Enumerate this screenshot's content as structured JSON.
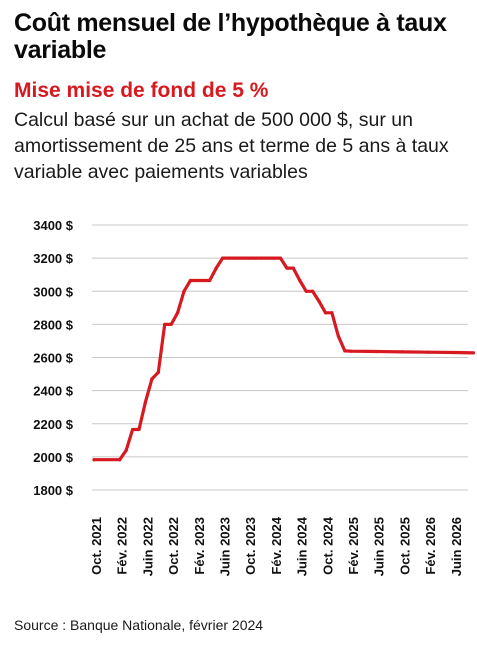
{
  "header": {
    "title": "Coût mensuel de l’hypothèque à taux variable",
    "subtitle": "Mise mise de fond de 5 %",
    "description": "Calcul basé sur un achat de 500 000 $, sur un amortissement de 25 ans et terme de 5 ans à taux variable avec paiements variables"
  },
  "footer": {
    "source": "Source : Banque Nationale, février 2024"
  },
  "colors": {
    "line": "#d71920",
    "grid": "#c8c8c8",
    "subtitle": "#d71920"
  },
  "chart_data": {
    "type": "line",
    "title": "Coût mensuel de l’hypothèque à taux variable",
    "subtitle": "Mise mise de fond de 5 %",
    "ylim": [
      1800,
      3400
    ],
    "yticks": [
      3400,
      3200,
      3000,
      2800,
      2600,
      2400,
      2200,
      2000,
      1800
    ],
    "ytick_labels": [
      "3400 $",
      "3200 $",
      "3000 $",
      "2800 $",
      "2600 $",
      "2400 $",
      "2200 $",
      "2000 $",
      "1800 $"
    ],
    "xticks": [
      "Oct. 2021",
      "Fév. 2022",
      "Juin 2022",
      "Oct. 2022",
      "Fév. 2023",
      "Juin 2023",
      "Oct. 2023",
      "Fév. 2024",
      "Juin 2024",
      "Oct. 2024",
      "Fév. 2025",
      "Juin 2025",
      "Oct. 2025",
      "Fév. 2026",
      "Juin 2026"
    ],
    "grid": true,
    "series": [
      {
        "x": [
          "2021-10",
          "2022-02",
          "2022-03",
          "2022-04",
          "2022-05",
          "2022-06",
          "2022-07",
          "2022-08",
          "2022-09",
          "2022-10",
          "2022-11",
          "2022-12",
          "2023-01",
          "2023-02",
          "2023-03",
          "2023-04",
          "2023-05",
          "2023-06",
          "2023-07",
          "2023-08",
          "2023-09",
          "2023-10",
          "2023-11",
          "2023-12",
          "2024-01",
          "2024-02",
          "2024-03",
          "2024-04",
          "2024-05",
          "2024-06",
          "2024-07",
          "2024-08",
          "2024-09",
          "2024-10",
          "2024-11",
          "2024-12",
          "2025-01",
          "2025-02",
          "2025-06",
          "2025-10",
          "2026-02",
          "2026-06",
          "2026-09"
        ],
        "y": [
          1983,
          1983,
          2040,
          2165,
          2165,
          2330,
          2470,
          2510,
          2800,
          2800,
          2870,
          3000,
          3065,
          3065,
          3065,
          3065,
          3140,
          3200,
          3200,
          3200,
          3200,
          3200,
          3200,
          3200,
          3200,
          3200,
          3200,
          3140,
          3140,
          3065,
          3000,
          3000,
          2940,
          2870,
          2870,
          2730,
          2640,
          2638,
          2636,
          2634,
          2632,
          2630,
          2628
        ]
      }
    ]
  }
}
